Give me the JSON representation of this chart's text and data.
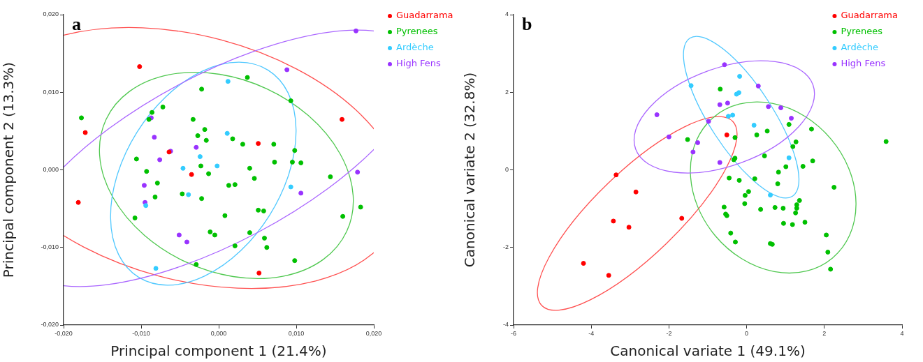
{
  "chart_data": [
    {
      "type": "scatter",
      "title": "a",
      "xlabel": "Principal component 1 (21.4%)",
      "ylabel": "Principal component 2 (13.3%)",
      "legend": "right",
      "marker": "circle",
      "xlim": [
        -0.02,
        0.02
      ],
      "ylim": [
        -0.02,
        0.02
      ],
      "xticks": [
        {
          "value": -0.02,
          "label": "-0,020"
        },
        {
          "value": -0.01,
          "label": "-0,010"
        },
        {
          "value": 0,
          "label": "0,000"
        },
        {
          "value": 0.01,
          "label": "0,010"
        },
        {
          "value": 0.02,
          "label": "0,020"
        }
      ],
      "yticks": [
        {
          "value": -0.02,
          "label": "-0,020"
        },
        {
          "value": -0.01,
          "label": "-0,010"
        },
        {
          "value": 0,
          "label": "0,000"
        },
        {
          "value": 0.01,
          "label": "0,010"
        },
        {
          "value": 0.02,
          "label": "0,020"
        }
      ],
      "series": [
        {
          "name": "Guadarrama",
          "color": "#ff0000",
          "x": [
            -0.0102,
            -0.0172,
            -0.0181,
            -0.0064,
            -0.0035,
            0.0051,
            0.0159,
            0.0052
          ],
          "values": [
            0.0133,
            0.0048,
            -0.0042,
            0.0023,
            -0.0006,
            0.0034,
            0.0065,
            -0.0133
          ]
        },
        {
          "name": "Pyrenees",
          "color": "#00c000",
          "x": [
            -0.0177,
            -0.0022,
            -0.0086,
            -0.009,
            -0.0072,
            -0.0033,
            -0.0018,
            -0.0027,
            -0.0016,
            -0.0106,
            -0.0093,
            -0.0023,
            -0.0013,
            -0.0079,
            -0.0082,
            -0.0047,
            -0.0022,
            -0.0108,
            -0.0011,
            -0.0005,
            -0.0029,
            0.0037,
            0.0093,
            0.0018,
            0.0031,
            0.0071,
            0.0098,
            0.0072,
            0.0095,
            0.0106,
            0.004,
            0.0046,
            0.0013,
            0.0021,
            0.0144,
            0.0183,
            0.016,
            0.0008,
            0.0051,
            0.0058,
            0.004,
            0.0059,
            0.0062,
            0.0021,
            0.0098
          ],
          "values": [
            0.0067,
            0.0104,
            0.0074,
            0.0065,
            0.0081,
            0.0065,
            0.0052,
            0.0044,
            0.0038,
            0.0014,
            -0.0002,
            0.0005,
            -0.0005,
            -0.0017,
            -0.0035,
            -0.0031,
            -0.0037,
            -0.0062,
            -0.008,
            -0.0084,
            -0.0122,
            0.0119,
            0.0089,
            0.004,
            0.0033,
            0.0033,
            0.0025,
            0.001,
            0.001,
            0.0009,
            0.0002,
            -0.0011,
            -0.002,
            -0.0019,
            -0.0009,
            -0.0048,
            -0.006,
            -0.0059,
            -0.0052,
            -0.0053,
            -0.0081,
            -0.0088,
            -0.01,
            -0.0098,
            -0.0117
          ]
        },
        {
          "name": "Ardèche",
          "color": "#33ccff",
          "x": [
            -0.0024,
            -0.0046,
            -0.0002,
            -0.0039,
            -0.0094,
            -0.0081,
            0.0012,
            0.0011,
            0.0093
          ],
          "values": [
            0.0017,
            0.0002,
            0.0005,
            -0.0032,
            -0.0046,
            -0.0127,
            0.0114,
            0.0047,
            -0.0022
          ]
        },
        {
          "name": "High Fens",
          "color": "#9933ff",
          "x": [
            -0.0087,
            -0.0083,
            -0.0062,
            -0.0076,
            -0.0029,
            -0.0096,
            -0.0095,
            -0.0051,
            -0.0041,
            0.0177,
            0.0088,
            0.0179,
            0.0106
          ],
          "values": [
            0.0067,
            0.0042,
            0.0024,
            0.0013,
            0.0029,
            -0.002,
            -0.0042,
            -0.0084,
            -0.0093,
            0.0179,
            0.0129,
            -0.0003,
            -0.003
          ]
        }
      ]
    },
    {
      "type": "scatter",
      "title": "b",
      "xlabel": "Canonical variate 1 (49.1%)",
      "ylabel": "Canonical variate 2 (32.8%)",
      "legend": "top right",
      "marker": "circle",
      "xlim": [
        -6,
        4
      ],
      "ylim": [
        -4,
        4
      ],
      "xticks": [
        -6,
        -4,
        -2,
        0,
        2,
        4
      ],
      "yticks": [
        -4,
        -2,
        0,
        2,
        4
      ],
      "series": [
        {
          "name": "Guadarrama",
          "color": "#ff0000",
          "x": [
            -3.36,
            -2.85,
            -3.43,
            -3.03,
            -1.67,
            -4.2,
            -3.55,
            -0.51
          ],
          "values": [
            -0.13,
            -0.57,
            -1.32,
            -1.48,
            -1.25,
            -2.41,
            -2.72,
            0.9
          ]
        },
        {
          "name": "Pyrenees",
          "color": "#00c000",
          "x": [
            -1.52,
            -0.68,
            1.09,
            1.67,
            0.53,
            0.26,
            -0.3,
            1.27,
            1.19,
            3.59,
            0.46,
            -0.3,
            -0.33,
            1.7,
            1.45,
            1.01,
            0.82,
            -0.45,
            -0.19,
            0.21,
            0.8,
            2.25,
            0.05,
            -0.04,
            -0.05,
            1.36,
            1.29,
            1.29,
            1.26,
            -0.58,
            -0.54,
            -0.51,
            0.36,
            0.73,
            0.94,
            0.95,
            1.18,
            1.5,
            -0.41,
            -0.29,
            0.61,
            0.66,
            2.05,
            2.09,
            2.16
          ],
          "values": [
            0.78,
            2.08,
            1.17,
            1.05,
            1.0,
            0.9,
            0.83,
            0.72,
            0.6,
            0.73,
            0.36,
            0.3,
            0.26,
            0.23,
            0.09,
            0.08,
            -0.06,
            -0.21,
            -0.27,
            -0.23,
            -0.36,
            -0.45,
            -0.56,
            -0.66,
            -0.87,
            -0.79,
            -0.9,
            -0.99,
            -1.11,
            -0.96,
            -1.14,
            -1.18,
            -1.02,
            -0.97,
            -0.99,
            -1.38,
            -1.41,
            -1.35,
            -1.63,
            -1.86,
            -1.9,
            -1.92,
            -1.68,
            -2.12,
            -2.56
          ]
        },
        {
          "name": "Ardèche",
          "color": "#33ccff",
          "x": [
            -1.43,
            -0.18,
            -0.26,
            -0.2,
            -0.47,
            -0.36,
            0.19,
            1.09,
            0.61
          ],
          "values": [
            2.17,
            2.41,
            1.95,
            1.99,
            1.38,
            1.41,
            1.15,
            0.31,
            -0.65
          ]
        },
        {
          "name": "High Fens",
          "color": "#9933ff",
          "x": [
            -2.31,
            -2.0,
            -1.26,
            -1.38,
            -0.98,
            -0.57,
            0.3,
            -0.69,
            -0.49,
            0.56,
            0.88,
            1.15,
            -0.69
          ],
          "values": [
            1.42,
            0.85,
            0.7,
            0.46,
            1.25,
            2.71,
            2.16,
            1.68,
            1.72,
            1.63,
            1.6,
            1.33,
            0.19
          ]
        }
      ]
    }
  ]
}
